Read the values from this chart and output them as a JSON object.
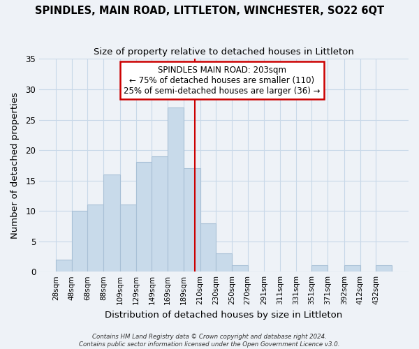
{
  "title": "SPINDLES, MAIN ROAD, LITTLETON, WINCHESTER, SO22 6QT",
  "subtitle": "Size of property relative to detached houses in Littleton",
  "xlabel": "Distribution of detached houses by size in Littleton",
  "ylabel": "Number of detached properties",
  "bar_edges": [
    28,
    48,
    68,
    88,
    109,
    129,
    149,
    169,
    189,
    210,
    230,
    250,
    270,
    291,
    311,
    331,
    351,
    371,
    392,
    412,
    432
  ],
  "bar_heights": [
    2,
    10,
    11,
    16,
    11,
    18,
    19,
    27,
    17,
    8,
    3,
    1,
    0,
    0,
    0,
    0,
    1,
    0,
    1,
    0,
    1
  ],
  "bar_color": "#c8daea",
  "bar_edge_color": "#a8c0d6",
  "vline_x": 203,
  "vline_color": "#cc0000",
  "annotation_title": "SPINDLES MAIN ROAD: 203sqm",
  "annotation_line1": "← 75% of detached houses are smaller (110)",
  "annotation_line2": "25% of semi-detached houses are larger (36) →",
  "annotation_box_color": "#cc0000",
  "annotation_fill": "#ffffff",
  "tick_labels": [
    "28sqm",
    "48sqm",
    "68sqm",
    "88sqm",
    "109sqm",
    "129sqm",
    "149sqm",
    "169sqm",
    "189sqm",
    "210sqm",
    "230sqm",
    "250sqm",
    "270sqm",
    "291sqm",
    "311sqm",
    "331sqm",
    "351sqm",
    "371sqm",
    "392sqm",
    "412sqm",
    "432sqm"
  ],
  "ylim": [
    0,
    35
  ],
  "yticks": [
    0,
    5,
    10,
    15,
    20,
    25,
    30,
    35
  ],
  "grid_color": "#c8d8e8",
  "footnote1": "Contains HM Land Registry data © Crown copyright and database right 2024.",
  "footnote2": "Contains public sector information licensed under the Open Government Licence v3.0.",
  "bg_color": "#eef2f7"
}
